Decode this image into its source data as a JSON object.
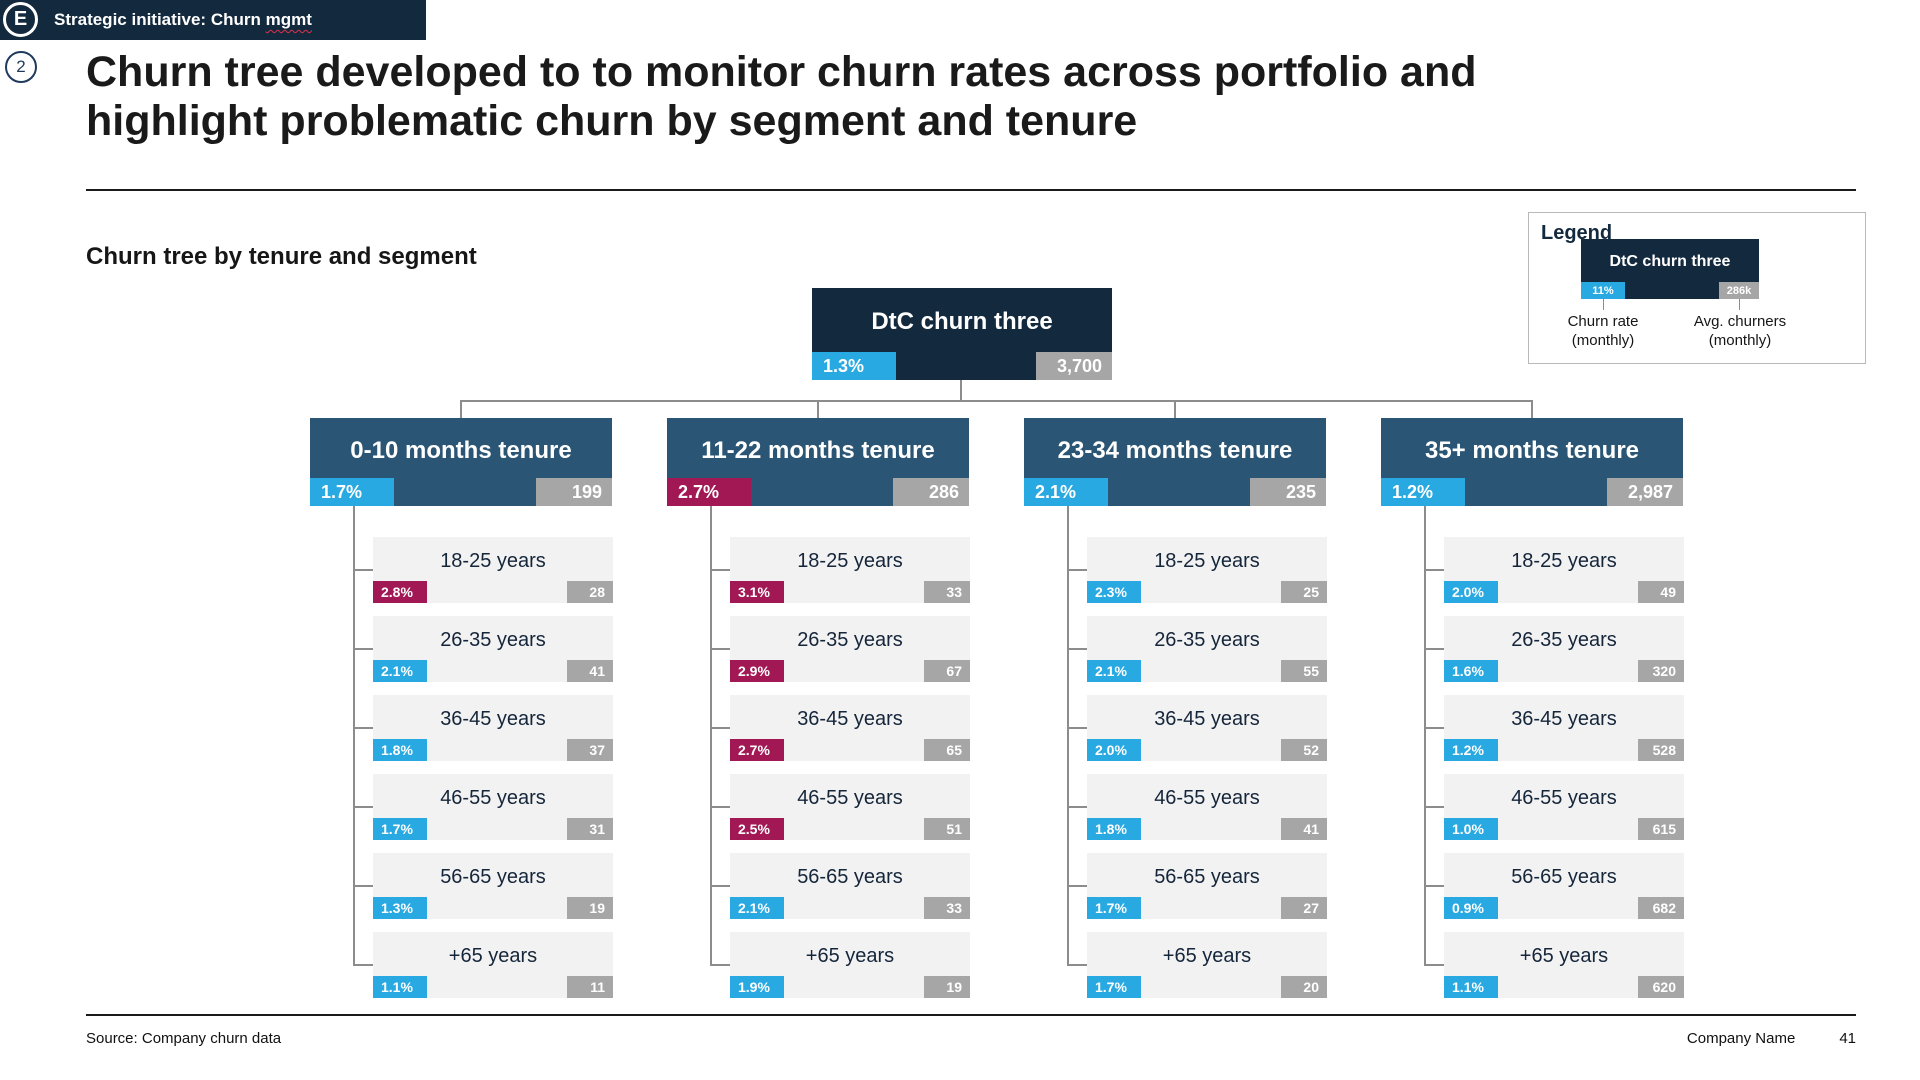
{
  "header": {
    "badge_icon": "E",
    "badge_label": "Strategic initiative: Churn ",
    "badge_label_flagged": "mgmt",
    "slide_marker": "2",
    "title_line1": "Churn tree developed to to monitor churn rates across portfolio and",
    "title_line2": "highlight problematic churn by segment and tenure"
  },
  "section": {
    "heading": "Churn tree by tenure and segment"
  },
  "legend": {
    "title": "Legend",
    "node_label": "DtC churn three",
    "rate_value": "11%",
    "churners_value": "286k",
    "rate_caption": "Churn rate\n(monthly)",
    "churners_caption": "Avg. churners\n(monthly)"
  },
  "tree": {
    "root": {
      "label": "DtC churn three",
      "rate": "1.3%",
      "count": "3,700",
      "rate_color": "blue"
    },
    "branches": [
      {
        "label": "0-10 months tenure",
        "rate": "1.7%",
        "count": "199",
        "rate_color": "blue",
        "children": [
          {
            "label": "18-25 years",
            "rate": "2.8%",
            "count": "28",
            "rate_color": "crimson"
          },
          {
            "label": "26-35 years",
            "rate": "2.1%",
            "count": "41",
            "rate_color": "blue"
          },
          {
            "label": "36-45 years",
            "rate": "1.8%",
            "count": "37",
            "rate_color": "blue"
          },
          {
            "label": "46-55 years",
            "rate": "1.7%",
            "count": "31",
            "rate_color": "blue"
          },
          {
            "label": "56-65 years",
            "rate": "1.3%",
            "count": "19",
            "rate_color": "blue"
          },
          {
            "label": "+65 years",
            "rate": "1.1%",
            "count": "11",
            "rate_color": "blue"
          }
        ]
      },
      {
        "label": "11-22 months tenure",
        "rate": "2.7%",
        "count": "286",
        "rate_color": "crimson",
        "children": [
          {
            "label": "18-25 years",
            "rate": "3.1%",
            "count": "33",
            "rate_color": "crimson"
          },
          {
            "label": "26-35 years",
            "rate": "2.9%",
            "count": "67",
            "rate_color": "crimson"
          },
          {
            "label": "36-45 years",
            "rate": "2.7%",
            "count": "65",
            "rate_color": "crimson"
          },
          {
            "label": "46-55 years",
            "rate": "2.5%",
            "count": "51",
            "rate_color": "crimson"
          },
          {
            "label": "56-65 years",
            "rate": "2.1%",
            "count": "33",
            "rate_color": "blue"
          },
          {
            "label": "+65 years",
            "rate": "1.9%",
            "count": "19",
            "rate_color": "blue"
          }
        ]
      },
      {
        "label": "23-34 months tenure",
        "rate": "2.1%",
        "count": "235",
        "rate_color": "blue",
        "children": [
          {
            "label": "18-25 years",
            "rate": "2.3%",
            "count": "25",
            "rate_color": "blue"
          },
          {
            "label": "26-35 years",
            "rate": "2.1%",
            "count": "55",
            "rate_color": "blue"
          },
          {
            "label": "36-45 years",
            "rate": "2.0%",
            "count": "52",
            "rate_color": "blue"
          },
          {
            "label": "46-55 years",
            "rate": "1.8%",
            "count": "41",
            "rate_color": "blue"
          },
          {
            "label": "56-65 years",
            "rate": "1.7%",
            "count": "27",
            "rate_color": "blue"
          },
          {
            "label": "+65 years",
            "rate": "1.7%",
            "count": "20",
            "rate_color": "blue"
          }
        ]
      },
      {
        "label": "35+ months tenure",
        "rate": "1.2%",
        "count": "2,987",
        "rate_color": "blue",
        "children": [
          {
            "label": "18-25 years",
            "rate": "2.0%",
            "count": "49",
            "rate_color": "blue"
          },
          {
            "label": "26-35 years",
            "rate": "1.6%",
            "count": "320",
            "rate_color": "blue"
          },
          {
            "label": "36-45 years",
            "rate": "1.2%",
            "count": "528",
            "rate_color": "blue"
          },
          {
            "label": "46-55 years",
            "rate": "1.0%",
            "count": "615",
            "rate_color": "blue"
          },
          {
            "label": "56-65 years",
            "rate": "0.9%",
            "count": "682",
            "rate_color": "blue"
          },
          {
            "label": "+65 years",
            "rate": "1.1%",
            "count": "620",
            "rate_color": "blue"
          }
        ]
      }
    ]
  },
  "footer": {
    "source": "Source: Company churn data",
    "company": "Company Name",
    "page": "41"
  },
  "colors": {
    "dark_navy": "#13293d",
    "branch_navy": "#2b5574",
    "rate_blue": "#29a9e1",
    "rate_crimson": "#a21855",
    "count_gray": "#a6a6a6",
    "leaf_bg": "#f2f2f2"
  }
}
